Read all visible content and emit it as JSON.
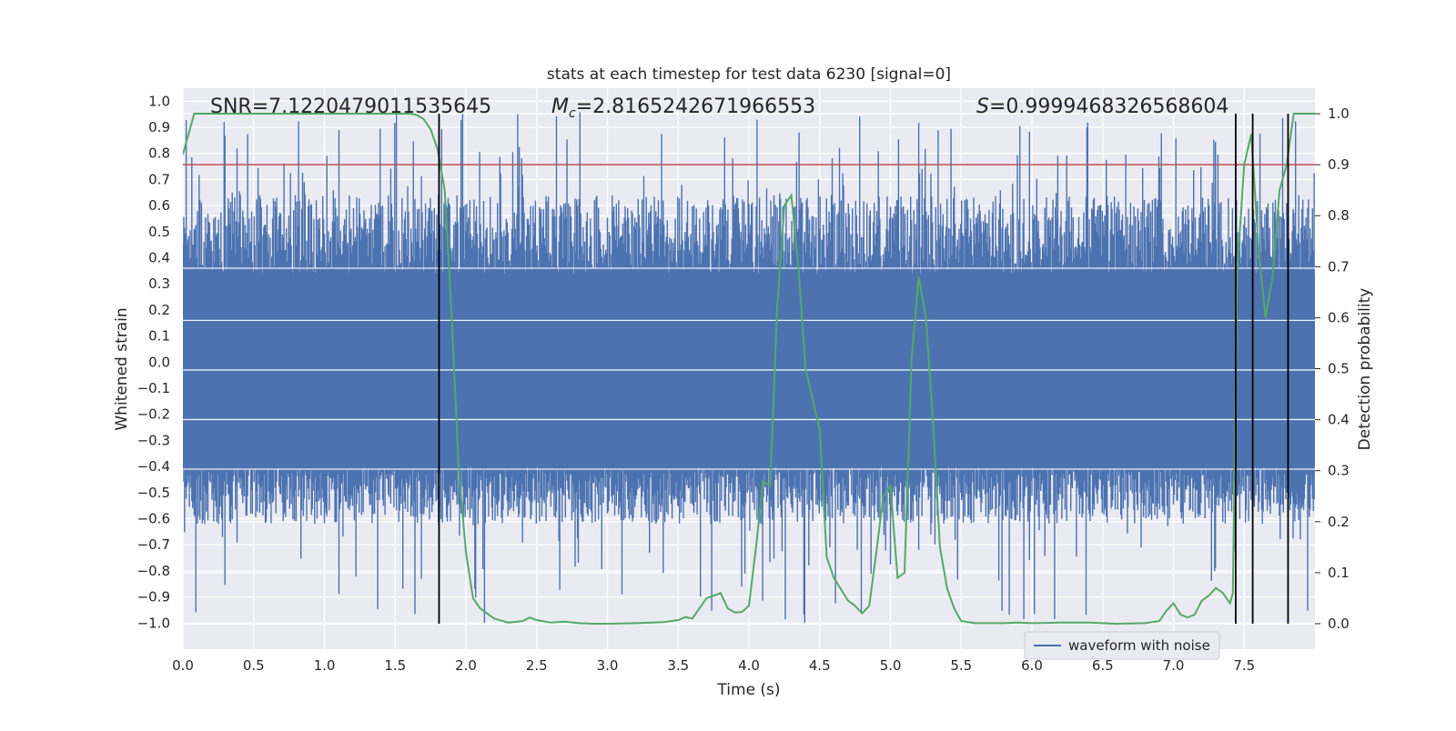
{
  "chart_data": {
    "type": "line",
    "title": "stats at each timestep for test data 6230 [signal=0]",
    "xlabel": "Time (s)",
    "ylabel_left": "Whitened strain",
    "ylabel_right": "Detection probability",
    "xlim": [
      0.0,
      8.0
    ],
    "ylim_left": [
      -1.1,
      1.05
    ],
    "ylim_right": [
      -0.05,
      1.05
    ],
    "xticks": [
      "0.0",
      "0.5",
      "1.0",
      "1.5",
      "2.0",
      "2.5",
      "3.0",
      "3.5",
      "4.0",
      "4.5",
      "5.0",
      "5.5",
      "6.0",
      "6.5",
      "7.0",
      "7.5"
    ],
    "yticks_left": [
      "1.0",
      "0.9",
      "0.8",
      "0.7",
      "0.6",
      "0.5",
      "0.4",
      "0.3",
      "0.2",
      "0.1",
      "0.0",
      "-0.1",
      "-0.2",
      "-0.3",
      "-0.4",
      "-0.5",
      "-0.6",
      "-0.7",
      "-0.8",
      "-0.9",
      "-1.0"
    ],
    "yticks_right": [
      "1.0",
      "0.9",
      "0.8",
      "0.7",
      "0.6",
      "0.5",
      "0.4",
      "0.3",
      "0.2",
      "0.1",
      "0.0"
    ],
    "grid": true,
    "legend": {
      "position": "bottom-right",
      "entries": [
        "waveform with noise"
      ]
    },
    "annotations": {
      "snr": "SNR=7.1220479011535645",
      "mc_symbol": "M",
      "mc_sub": "c",
      "mc_value": "=2.8165242671966553",
      "s_symbol": "S",
      "s_value": "=0.9999468326568604"
    },
    "threshold": {
      "axis": "right",
      "value": 0.9,
      "color": "#c44e52"
    },
    "vertical_lines": [
      1.81,
      7.44,
      7.56,
      7.81
    ],
    "colors": {
      "strain": "#4c72b0",
      "probability": "#55a868",
      "threshold": "#c44e52",
      "vlines": "#000000",
      "plot_bg": "#eaeaf2",
      "grid": "#ffffff"
    },
    "strain_envelope": {
      "core_upper": 0.34,
      "core_lower": -0.4,
      "peak_upper": 0.96,
      "peak_lower": -1.0,
      "samples": 1400
    },
    "series": [
      {
        "name": "detection probability",
        "axis": "right",
        "x": [
          0.0,
          0.08,
          0.2,
          0.4,
          0.6,
          0.8,
          1.0,
          1.2,
          1.4,
          1.6,
          1.65,
          1.7,
          1.75,
          1.8,
          1.85,
          1.9,
          1.95,
          2.0,
          2.05,
          2.1,
          2.2,
          2.3,
          2.4,
          2.45,
          2.5,
          2.6,
          2.7,
          2.8,
          2.9,
          3.0,
          3.2,
          3.4,
          3.5,
          3.55,
          3.6,
          3.7,
          3.8,
          3.85,
          3.9,
          3.95,
          4.0,
          4.05,
          4.1,
          4.15,
          4.2,
          4.25,
          4.3,
          4.35,
          4.4,
          4.5,
          4.55,
          4.6,
          4.7,
          4.75,
          4.8,
          4.85,
          4.9,
          4.95,
          5.0,
          5.05,
          5.1,
          5.15,
          5.2,
          5.25,
          5.3,
          5.35,
          5.4,
          5.45,
          5.5,
          5.55,
          5.6,
          5.7,
          5.8,
          5.9,
          6.0,
          6.2,
          6.4,
          6.6,
          6.8,
          6.9,
          6.95,
          7.0,
          7.05,
          7.1,
          7.15,
          7.2,
          7.25,
          7.3,
          7.35,
          7.4,
          7.42,
          7.45,
          7.5,
          7.55,
          7.6,
          7.65,
          7.7,
          7.75,
          7.8,
          7.85,
          7.9,
          7.95,
          8.0
        ],
        "values": [
          0.92,
          1.0,
          1.0,
          1.0,
          1.0,
          1.0,
          1.0,
          1.0,
          1.0,
          1.0,
          0.998,
          0.99,
          0.97,
          0.93,
          0.85,
          0.6,
          0.3,
          0.14,
          0.05,
          0.03,
          0.01,
          0.002,
          0.005,
          0.012,
          0.007,
          0.002,
          0.004,
          0.001,
          0.0,
          0.0,
          0.001,
          0.003,
          0.007,
          0.013,
          0.01,
          0.05,
          0.06,
          0.03,
          0.022,
          0.023,
          0.035,
          0.15,
          0.28,
          0.27,
          0.62,
          0.82,
          0.84,
          0.7,
          0.5,
          0.38,
          0.13,
          0.09,
          0.045,
          0.035,
          0.02,
          0.035,
          0.14,
          0.25,
          0.27,
          0.09,
          0.1,
          0.52,
          0.68,
          0.6,
          0.4,
          0.15,
          0.07,
          0.03,
          0.005,
          0.003,
          0.001,
          0.001,
          0.001,
          0.002,
          0.001,
          0.002,
          0.002,
          0.0,
          0.001,
          0.005,
          0.025,
          0.04,
          0.018,
          0.012,
          0.018,
          0.045,
          0.055,
          0.07,
          0.06,
          0.04,
          0.06,
          0.69,
          0.9,
          0.96,
          0.74,
          0.6,
          0.68,
          0.85,
          0.9,
          1.0,
          1.0,
          1.0,
          1.0
        ]
      }
    ]
  }
}
